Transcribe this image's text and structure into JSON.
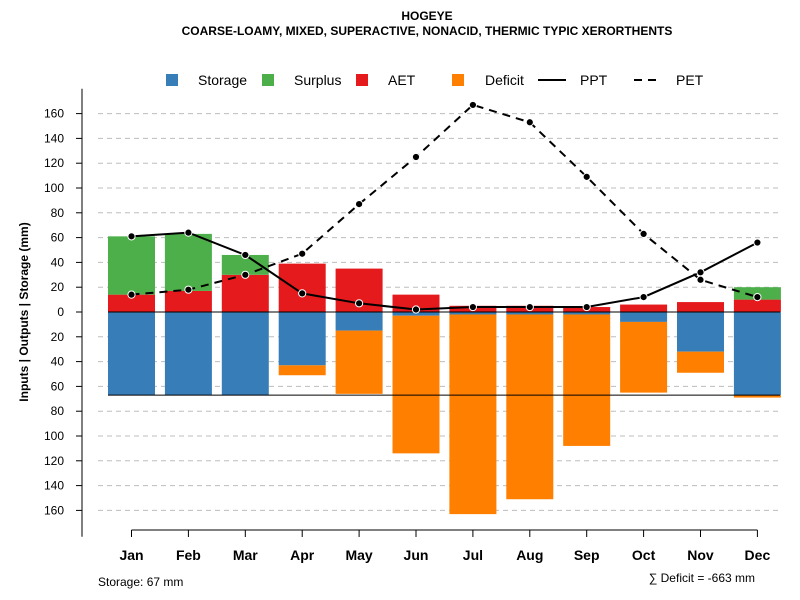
{
  "chart_data": {
    "type": "bar",
    "title": "HOGEYE",
    "subtitle": "COARSE-LOAMY, MIXED, SUPERACTIVE, NONACID, THERMIC TYPIC XERORTHENTS",
    "ylabel": "Inputs | Outputs | Storage    (mm)",
    "ylim": [
      -170,
      180
    ],
    "yticks": [
      160,
      140,
      120,
      100,
      80,
      60,
      40,
      20,
      0,
      -20,
      -40,
      -60,
      -80,
      -100,
      -120,
      -140,
      -160
    ],
    "ytick_labels": [
      "160",
      "140",
      "120",
      "100",
      "80",
      "60",
      "40",
      "20",
      "0",
      "20",
      "40",
      "60",
      "80",
      "100",
      "120",
      "140",
      "160"
    ],
    "grid": true,
    "legend_position": "top",
    "categories": [
      "Jan",
      "Feb",
      "Mar",
      "Apr",
      "May",
      "Jun",
      "Jul",
      "Aug",
      "Sep",
      "Oct",
      "Nov",
      "Dec"
    ],
    "series": [
      {
        "name": "AET",
        "kind": "bar-up",
        "color": "#e41a1c",
        "values": [
          14,
          17,
          30,
          39,
          35,
          14,
          5,
          5,
          4,
          6,
          8,
          10
        ]
      },
      {
        "name": "Surplus",
        "kind": "bar-up-stacked",
        "color": "#4daf4a",
        "values": [
          47,
          46,
          16,
          0,
          0,
          0,
          0,
          0,
          0,
          0,
          0,
          10
        ]
      },
      {
        "name": "Storage",
        "kind": "bar-down",
        "color": "#377eb8",
        "values": [
          67,
          67,
          67,
          43,
          15,
          3,
          2,
          2,
          2,
          8,
          32,
          67
        ]
      },
      {
        "name": "Deficit",
        "kind": "bar-down-stacked",
        "color": "#ff7f00",
        "values": [
          0,
          0,
          0,
          8,
          51,
          111,
          161,
          149,
          106,
          57,
          17,
          2
        ]
      },
      {
        "name": "PPT",
        "kind": "line-solid",
        "color": "#000000",
        "values": [
          61,
          64,
          46,
          15,
          7,
          2,
          4,
          4,
          4,
          12,
          32,
          56
        ]
      },
      {
        "name": "PET",
        "kind": "line-dashed",
        "color": "#000000",
        "values": [
          14,
          18,
          30,
          47,
          87,
          125,
          167,
          153,
          109,
          63,
          26,
          12
        ]
      }
    ],
    "storage_capacity": 67,
    "legend": [
      {
        "label": "Storage",
        "type": "square",
        "color": "#377eb8"
      },
      {
        "label": "Surplus",
        "type": "square",
        "color": "#4daf4a"
      },
      {
        "label": "AET",
        "type": "square",
        "color": "#e41a1c"
      },
      {
        "label": "Deficit",
        "type": "square",
        "color": "#ff7f00"
      },
      {
        "label": "PPT",
        "type": "line-solid",
        "color": "#000000"
      },
      {
        "label": "PET",
        "type": "line-dashed",
        "color": "#000000"
      }
    ],
    "footer_left": "Storage: 67 mm",
    "footer_right": "∑ Deficit = -663 mm"
  }
}
